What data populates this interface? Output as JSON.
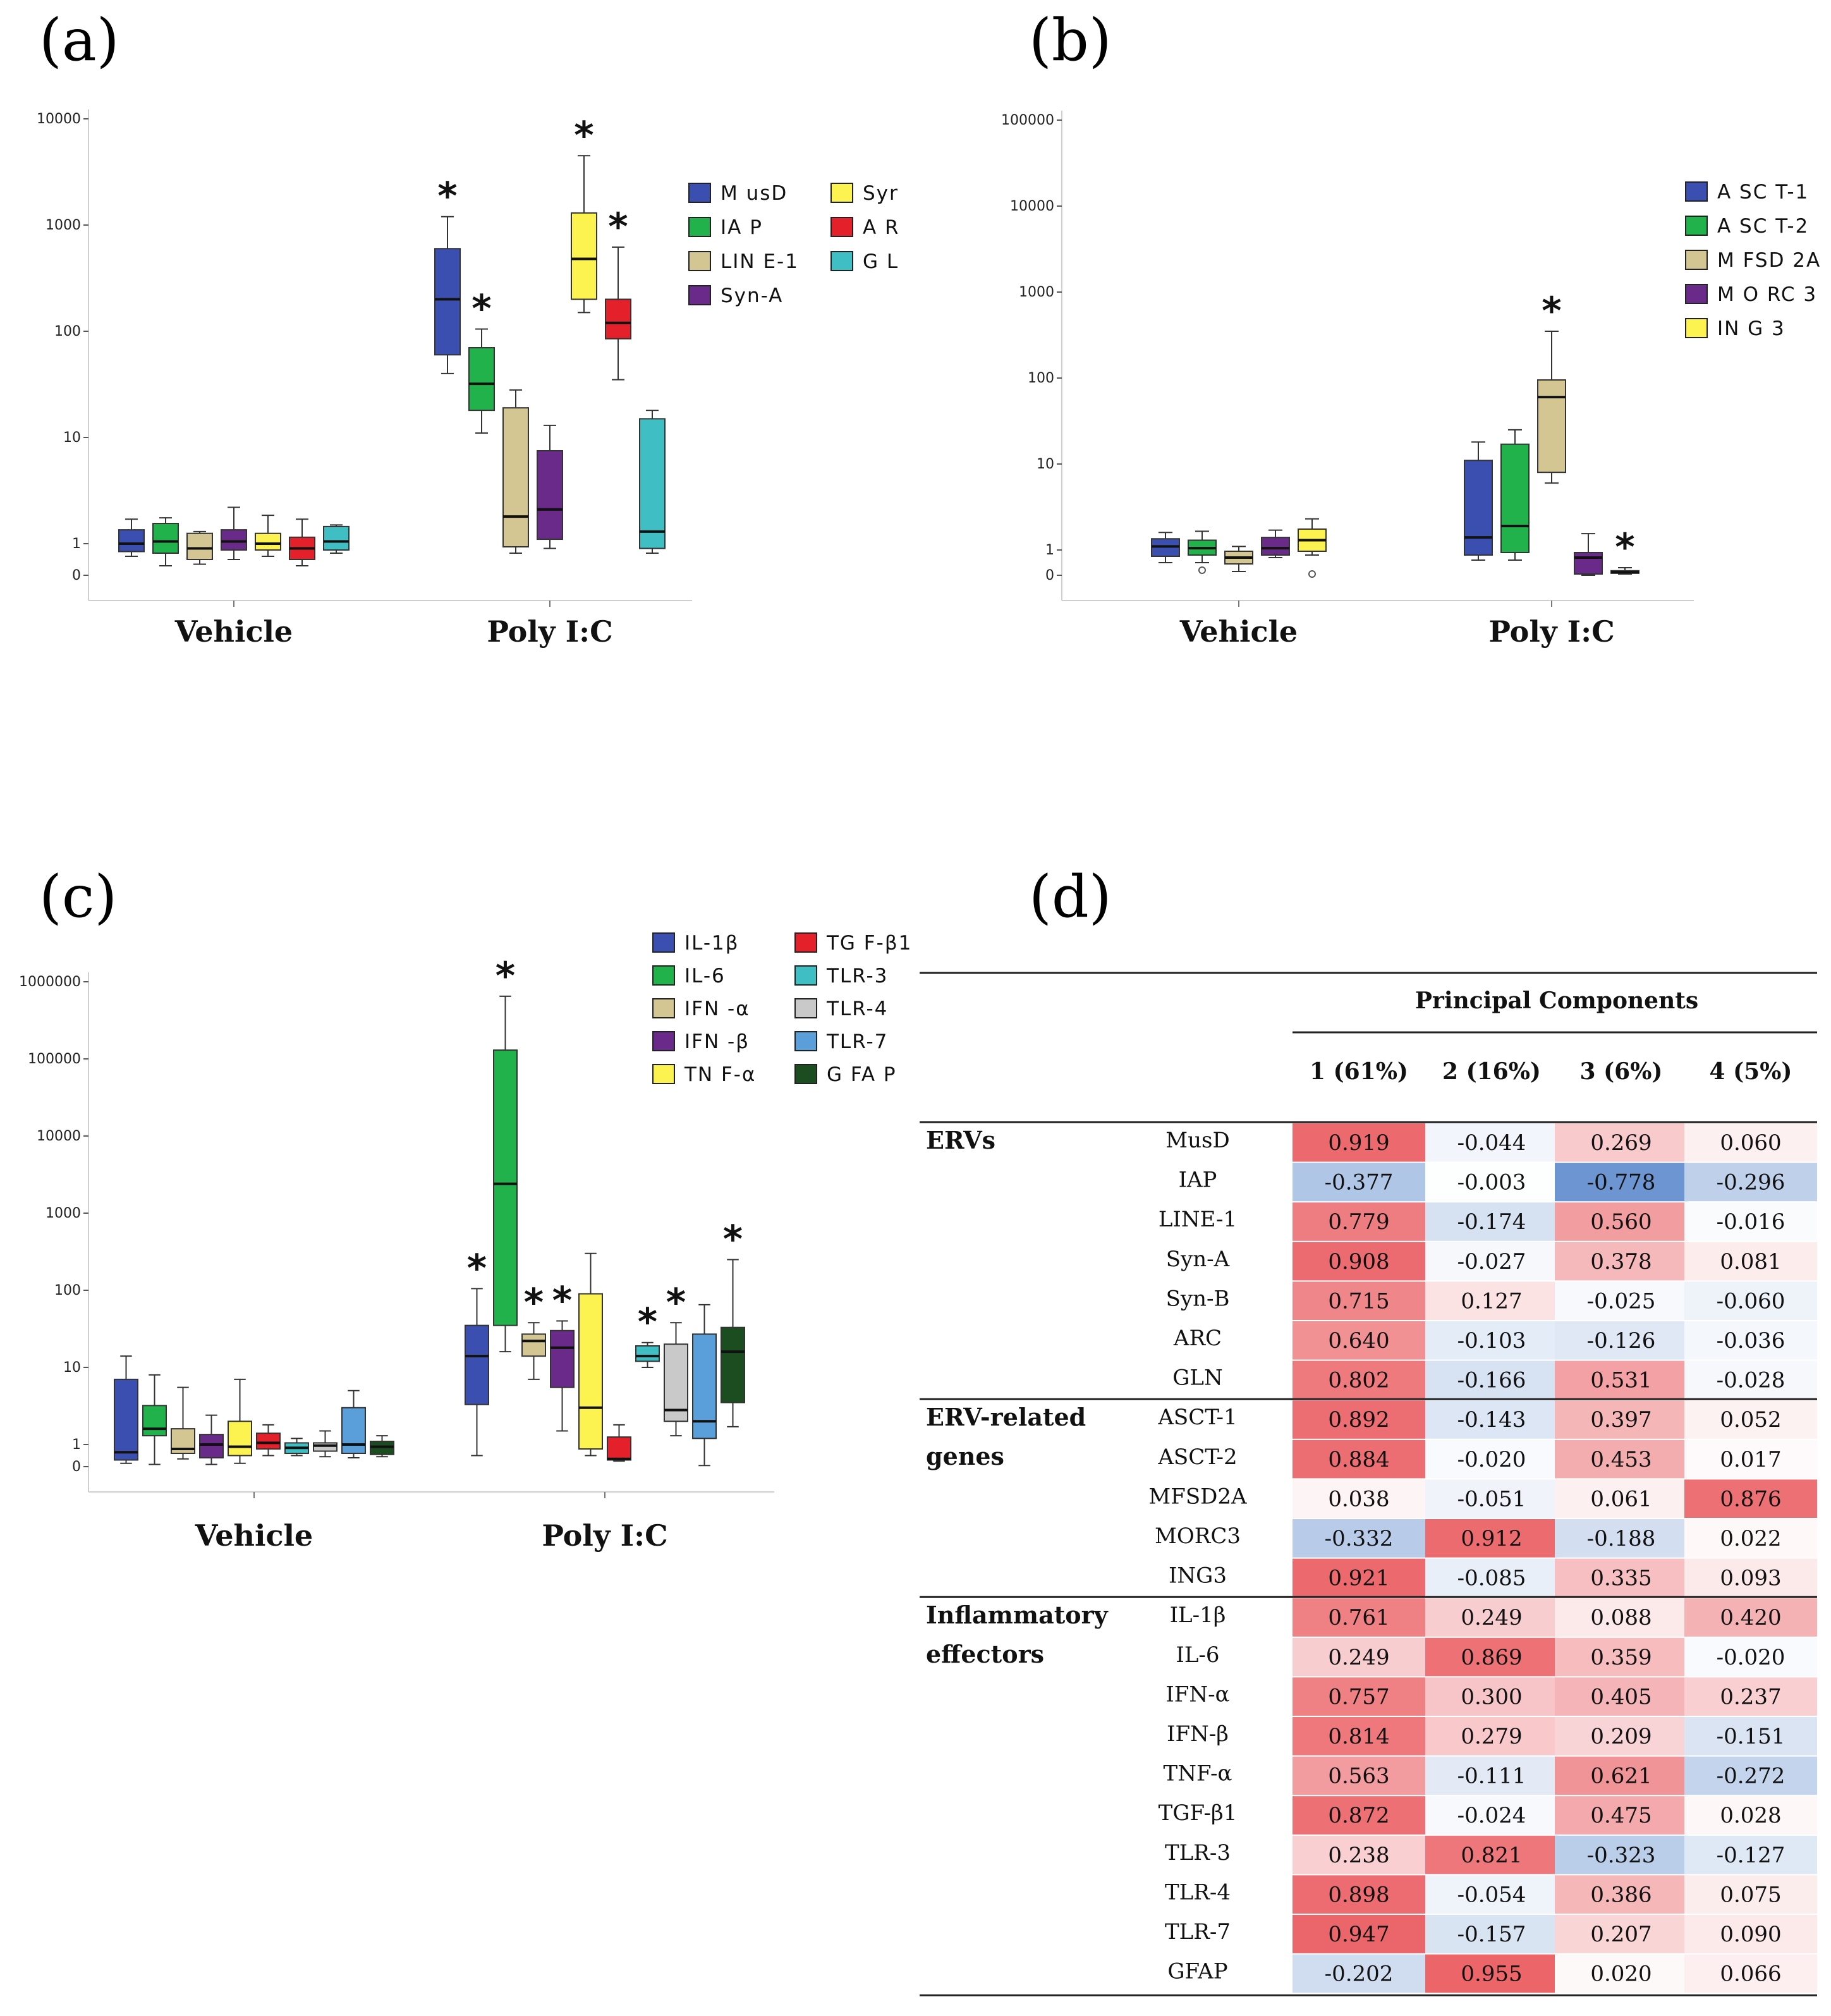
{
  "panels": {
    "a": "(a)",
    "b": "(b)",
    "c": "(c)",
    "d": "(d)"
  },
  "chart_data": [
    {
      "type": "box",
      "panel": "(a)",
      "y_scale": "symlog",
      "y_ticks": [
        "0",
        "1",
        "10",
        "100",
        "1000",
        "10000"
      ],
      "groups": [
        "Vehicle",
        "Poly I:C"
      ],
      "legend_columns": 2,
      "series": [
        {
          "name": "MusD",
          "label": "M usD",
          "color": "#3a4fb0",
          "boxes": [
            {
              "min": 0.6,
              "q1": 0.75,
              "median": 1,
              "q3": 1.35,
              "max": 1.7,
              "sig": false
            },
            {
              "min": 40,
              "q1": 60,
              "median": 200,
              "q3": 600,
              "max": 1200,
              "sig": true
            }
          ]
        },
        {
          "name": "IAP",
          "label": "IA P",
          "color": "#22b24c",
          "boxes": [
            {
              "min": 0.3,
              "q1": 0.7,
              "median": 1.05,
              "q3": 1.55,
              "max": 1.75,
              "sig": false
            },
            {
              "min": 11,
              "q1": 18,
              "median": 32,
              "q3": 70,
              "max": 105,
              "sig": true
            }
          ]
        },
        {
          "name": "LINE-1",
          "label": "LIN E-1",
          "color": "#d4c692",
          "boxes": [
            {
              "min": 0.35,
              "q1": 0.5,
              "median": 0.85,
              "q3": 1.25,
              "max": 1.3,
              "sig": false
            },
            {
              "min": 0.7,
              "q1": 0.9,
              "median": 1.8,
              "q3": 19,
              "max": 28,
              "sig": false
            }
          ]
        },
        {
          "name": "Syn-A",
          "label": "Syn-A",
          "color": "#6a2a8a",
          "boxes": [
            {
              "min": 0.5,
              "q1": 0.8,
              "median": 1.05,
              "q3": 1.35,
              "max": 2.2,
              "sig": false
            },
            {
              "min": 0.85,
              "q1": 1.1,
              "median": 2.1,
              "q3": 7.5,
              "max": 13,
              "sig": false
            }
          ]
        },
        {
          "name": "Syn-B",
          "label": "Syn-B",
          "color": "#fcf351",
          "boxes": [
            {
              "min": 0.6,
              "q1": 0.8,
              "median": 1.0,
              "q3": 1.25,
              "max": 1.85,
              "sig": false
            },
            {
              "min": 150,
              "q1": 200,
              "median": 480,
              "q3": 1300,
              "max": 4500,
              "sig": true
            }
          ]
        },
        {
          "name": "ARC",
          "label": "A RC",
          "color": "#e4202a",
          "boxes": [
            {
              "min": 0.3,
              "q1": 0.5,
              "median": 0.85,
              "q3": 1.15,
              "max": 1.7,
              "sig": false
            },
            {
              "min": 35,
              "q1": 85,
              "median": 120,
              "q3": 200,
              "max": 620,
              "sig": true
            }
          ]
        },
        {
          "name": "GLN",
          "label": "G LN",
          "color": "#3fbfc4",
          "boxes": [
            {
              "min": 0.7,
              "q1": 0.8,
              "median": 1.05,
              "q3": 1.45,
              "max": 1.5,
              "sig": false
            },
            {
              "min": 0.7,
              "q1": 0.85,
              "median": 1.3,
              "q3": 15,
              "max": 18,
              "sig": false
            }
          ]
        }
      ]
    },
    {
      "type": "box",
      "panel": "(b)",
      "y_scale": "symlog",
      "y_ticks": [
        "0",
        "1",
        "10",
        "100",
        "1000",
        "10000",
        "100000"
      ],
      "groups": [
        "Vehicle",
        "Poly I:C"
      ],
      "legend_columns": 1,
      "series": [
        {
          "name": "ASCT-1",
          "label": "A SC T-1",
          "color": "#3a4fb0",
          "boxes": [
            {
              "min": 0.5,
              "q1": 0.75,
              "median": 1.1,
              "q3": 1.35,
              "max": 1.6,
              "sig": false
            },
            {
              "min": 0.6,
              "q1": 0.8,
              "median": 1.4,
              "q3": 11,
              "max": 18,
              "sig": false
            }
          ]
        },
        {
          "name": "ASCT-2",
          "label": "A SC T-2",
          "color": "#22b24c",
          "boxes": [
            {
              "min": 0.5,
              "q1": 0.8,
              "median": 1.05,
              "q3": 1.3,
              "max": 1.65,
              "sig": false,
              "outliers": [
                0.2
              ]
            },
            {
              "min": 0.6,
              "q1": 0.9,
              "median": 1.9,
              "q3": 17,
              "max": 25,
              "sig": false
            }
          ]
        },
        {
          "name": "MFSD2A",
          "label": "M FSD 2A",
          "color": "#d4c692",
          "boxes": [
            {
              "min": 0.15,
              "q1": 0.45,
              "median": 0.7,
              "q3": 0.95,
              "max": 1.1,
              "sig": false
            },
            {
              "min": 6,
              "q1": 8,
              "median": 60,
              "q3": 95,
              "max": 350,
              "sig": true
            }
          ]
        },
        {
          "name": "MORC3",
          "label": "M O RC 3",
          "color": "#6a2a8a",
          "boxes": [
            {
              "min": 0.7,
              "q1": 0.8,
              "median": 1.05,
              "q3": 1.4,
              "max": 1.7,
              "sig": false
            },
            {
              "min": 0.0,
              "q1": 0.05,
              "median": 0.7,
              "q3": 0.9,
              "max": 1.55,
              "sig": false
            }
          ]
        },
        {
          "name": "ING3",
          "label": "IN G 3",
          "color": "#fcf351",
          "boxes": [
            {
              "min": 0.8,
              "q1": 0.95,
              "median": 1.3,
              "q3": 1.75,
              "max": 2.3,
              "sig": false,
              "outliers": [
                0.05
              ]
            },
            {
              "min": 0.05,
              "q1": 0.08,
              "median": 0.12,
              "q3": 0.18,
              "max": 0.3,
              "sig": true
            }
          ]
        }
      ]
    },
    {
      "type": "box",
      "panel": "(c)",
      "y_scale": "symlog",
      "y_ticks": [
        "0",
        "1",
        "10",
        "100",
        "1000",
        "10000",
        "100000",
        "1000000"
      ],
      "groups": [
        "Vehicle",
        "Poly I:C"
      ],
      "legend_columns": 2,
      "series": [
        {
          "name": "IL-1β",
          "label": "IL-1β",
          "color": "#3a4fb0",
          "boxes": [
            {
              "min": 0.15,
              "q1": 0.3,
              "median": 0.65,
              "q3": 7,
              "max": 14,
              "sig": false
            },
            {
              "min": 0.5,
              "q1": 3.3,
              "median": 14,
              "q3": 35,
              "max": 105,
              "sig": true
            }
          ]
        },
        {
          "name": "IL-6",
          "label": "IL-6",
          "color": "#22b24c",
          "boxes": [
            {
              "min": 0.1,
              "q1": 1.3,
              "median": 1.6,
              "q3": 3.2,
              "max": 8,
              "sig": false
            },
            {
              "min": 16,
              "q1": 35,
              "median": 2400,
              "q3": 130000,
              "max": 650000,
              "sig": true
            }
          ]
        },
        {
          "name": "IFN-α",
          "label": "IFN -α",
          "color": "#d4c692",
          "boxes": [
            {
              "min": 0.35,
              "q1": 0.6,
              "median": 0.8,
              "q3": 1.6,
              "max": 5.5,
              "sig": false
            },
            {
              "min": 7,
              "q1": 14,
              "median": 22,
              "q3": 27,
              "max": 38,
              "sig": true
            }
          ]
        },
        {
          "name": "IFN-β",
          "label": "IFN -β",
          "color": "#6a2a8a",
          "boxes": [
            {
              "min": 0.1,
              "q1": 0.4,
              "median": 1.0,
              "q3": 1.35,
              "max": 2.4,
              "sig": false
            },
            {
              "min": 1.5,
              "q1": 5.5,
              "median": 18,
              "q3": 30,
              "max": 40,
              "sig": true
            }
          ]
        },
        {
          "name": "TNF-α",
          "label": "TN F-α",
          "color": "#fcf351",
          "boxes": [
            {
              "min": 0.15,
              "q1": 0.5,
              "median": 0.9,
              "q3": 2.0,
              "max": 7,
              "sig": false
            },
            {
              "min": 0.5,
              "q1": 0.8,
              "median": 3,
              "q3": 90,
              "max": 300,
              "sig": false
            }
          ]
        },
        {
          "name": "TGF-β1",
          "label": "TG F-β1",
          "color": "#e4202a",
          "boxes": [
            {
              "min": 0.5,
              "q1": 0.8,
              "median": 1.05,
              "q3": 1.4,
              "max": 1.8,
              "sig": false
            },
            {
              "min": 0.25,
              "q1": 0.3,
              "median": 0.35,
              "q3": 1.25,
              "max": 1.8,
              "sig": false
            }
          ]
        },
        {
          "name": "TLR-3",
          "label": "TLR-3",
          "color": "#3fbfc4",
          "boxes": [
            {
              "min": 0.5,
              "q1": 0.6,
              "median": 0.85,
              "q3": 1.05,
              "max": 1.2,
              "sig": false
            },
            {
              "min": 10,
              "q1": 12,
              "median": 14,
              "q3": 19,
              "max": 21,
              "sig": true
            }
          ]
        },
        {
          "name": "TLR-4",
          "label": "TLR-4",
          "color": "#c9c9c9",
          "boxes": [
            {
              "min": 0.45,
              "q1": 0.7,
              "median": 0.95,
              "q3": 1.05,
              "max": 1.5,
              "sig": false
            },
            {
              "min": 1.3,
              "q1": 2.0,
              "median": 2.8,
              "q3": 20,
              "max": 38,
              "sig": true
            }
          ]
        },
        {
          "name": "TLR-7",
          "label": "TLR-7",
          "color": "#5a9fd9",
          "boxes": [
            {
              "min": 0.4,
              "q1": 0.6,
              "median": 1.0,
              "q3": 3.0,
              "max": 5,
              "sig": false
            },
            {
              "min": 0.05,
              "q1": 1.2,
              "median": 2.0,
              "q3": 27,
              "max": 65,
              "sig": false
            }
          ]
        },
        {
          "name": "GFAP",
          "label": "G FA P",
          "color": "#1b4d20",
          "boxes": [
            {
              "min": 0.45,
              "q1": 0.55,
              "median": 0.9,
              "q3": 1.1,
              "max": 1.3,
              "sig": false
            },
            {
              "min": 1.7,
              "q1": 3.5,
              "median": 16,
              "q3": 33,
              "max": 250,
              "sig": true
            }
          ]
        }
      ]
    },
    {
      "type": "table",
      "panel": "(d)",
      "title": "Principal Components",
      "columns": [
        "1 (61%)",
        "2 (16%)",
        "3 (6%)",
        "4 (5%)"
      ],
      "sections": [
        {
          "label_lines": [
            "ERVs"
          ],
          "rows": [
            {
              "name": "MusD",
              "values": [
                "0.919",
                "-0.044",
                "0.269",
                "0.060"
              ]
            },
            {
              "name": "IAP",
              "values": [
                "-0.377",
                "-0.003",
                "-0.778",
                "-0.296"
              ]
            },
            {
              "name": "LINE-1",
              "values": [
                "0.779",
                "-0.174",
                "0.560",
                "-0.016"
              ]
            },
            {
              "name": "Syn-A",
              "values": [
                "0.908",
                "-0.027",
                "0.378",
                "0.081"
              ]
            },
            {
              "name": "Syn-B",
              "values": [
                "0.715",
                "0.127",
                "-0.025",
                "-0.060"
              ]
            },
            {
              "name": "ARC",
              "values": [
                "0.640",
                "-0.103",
                "-0.126",
                "-0.036"
              ]
            },
            {
              "name": "GLN",
              "values": [
                "0.802",
                "-0.166",
                "0.531",
                "-0.028"
              ]
            }
          ]
        },
        {
          "label_lines": [
            "ERV-related",
            "genes"
          ],
          "rows": [
            {
              "name": "ASCT-1",
              "values": [
                "0.892",
                "-0.143",
                "0.397",
                "0.052"
              ]
            },
            {
              "name": "ASCT-2",
              "values": [
                "0.884",
                "-0.020",
                "0.453",
                "0.017"
              ]
            },
            {
              "name": "MFSD2A",
              "values": [
                "0.038",
                "-0.051",
                "0.061",
                "0.876"
              ]
            },
            {
              "name": "MORC3",
              "values": [
                "-0.332",
                "0.912",
                "-0.188",
                "0.022"
              ]
            },
            {
              "name": "ING3",
              "values": [
                "0.921",
                "-0.085",
                "0.335",
                "0.093"
              ]
            }
          ]
        },
        {
          "label_lines": [
            "Inflammatory",
            "effectors"
          ],
          "rows": [
            {
              "name": "IL-1β",
              "values": [
                "0.761",
                "0.249",
                "0.088",
                "0.420"
              ]
            },
            {
              "name": "IL-6",
              "values": [
                "0.249",
                "0.869",
                "0.359",
                "-0.020"
              ]
            },
            {
              "name": "IFN-α",
              "values": [
                "0.757",
                "0.300",
                "0.405",
                "0.237"
              ]
            },
            {
              "name": "IFN-β",
              "values": [
                "0.814",
                "0.279",
                "0.209",
                "-0.151"
              ]
            },
            {
              "name": "TNF-α",
              "values": [
                "0.563",
                "-0.111",
                "0.621",
                "-0.272"
              ]
            },
            {
              "name": "TGF-β1",
              "values": [
                "0.872",
                "-0.024",
                "0.475",
                "0.028"
              ]
            },
            {
              "name": "TLR-3",
              "values": [
                "0.238",
                "0.821",
                "-0.323",
                "-0.127"
              ]
            },
            {
              "name": "TLR-4",
              "values": [
                "0.898",
                "-0.054",
                "0.386",
                "0.075"
              ]
            },
            {
              "name": "TLR-7",
              "values": [
                "0.947",
                "-0.157",
                "0.207",
                "0.090"
              ]
            },
            {
              "name": "GFAP",
              "values": [
                "-0.202",
                "0.955",
                "0.020",
                "0.066"
              ]
            }
          ]
        }
      ]
    }
  ]
}
